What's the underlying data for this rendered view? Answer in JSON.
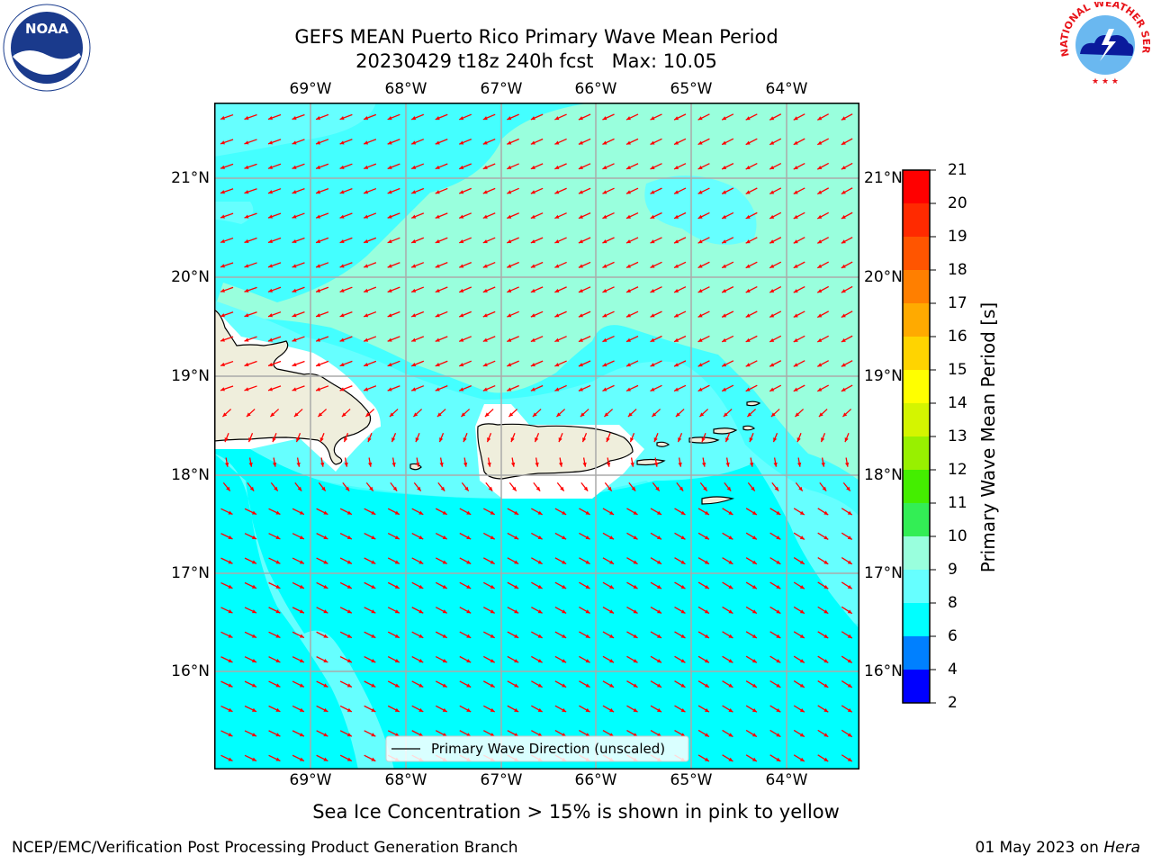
{
  "title_line1": "GEFS MEAN Puerto Rico Primary Wave Mean Period",
  "title_line2": "20230429 t18z 240h fcst   Max: 10.05",
  "lon_labels": [
    "69°W",
    "68°W",
    "67°W",
    "66°W",
    "65°W",
    "64°W"
  ],
  "lat_labels": [
    "21°N",
    "20°N",
    "19°N",
    "18°N",
    "17°N",
    "16°N"
  ],
  "legend_text": "Primary Wave Direction (unscaled)",
  "colorbar": {
    "label": "Primary Wave Mean Period [s]",
    "ticks": [
      "21",
      "20",
      "19",
      "18",
      "17",
      "16",
      "15",
      "14",
      "13",
      "12",
      "11",
      "10",
      "9",
      "8",
      "6",
      "4",
      "2"
    ],
    "colors": [
      "#ff0000",
      "#ff2a00",
      "#ff5500",
      "#ff7f00",
      "#ffaa00",
      "#ffd400",
      "#ffff00",
      "#d4f500",
      "#98f000",
      "#44ee00",
      "#33ee55",
      "#99ffdd",
      "#66ffff",
      "#00ffff",
      "#0080ff",
      "#0000ff"
    ]
  },
  "map": {
    "arrow_color": "#ff0000",
    "base_color": "#44ffff",
    "land_color": "#efeedc",
    "period_max": 10.05
  },
  "sea_ice_note": "Sea Ice Concentration > 15% is shown in pink to yellow",
  "footer": {
    "left": "NCEP/EMC/Verification Post Processing Product Generation Branch",
    "right_prefix": "01 May 2023 on ",
    "right_host": "Hera"
  },
  "logos": {
    "noaa_text": "NOAA",
    "nws_text": "NATIONAL WEATHER SERVICE"
  }
}
